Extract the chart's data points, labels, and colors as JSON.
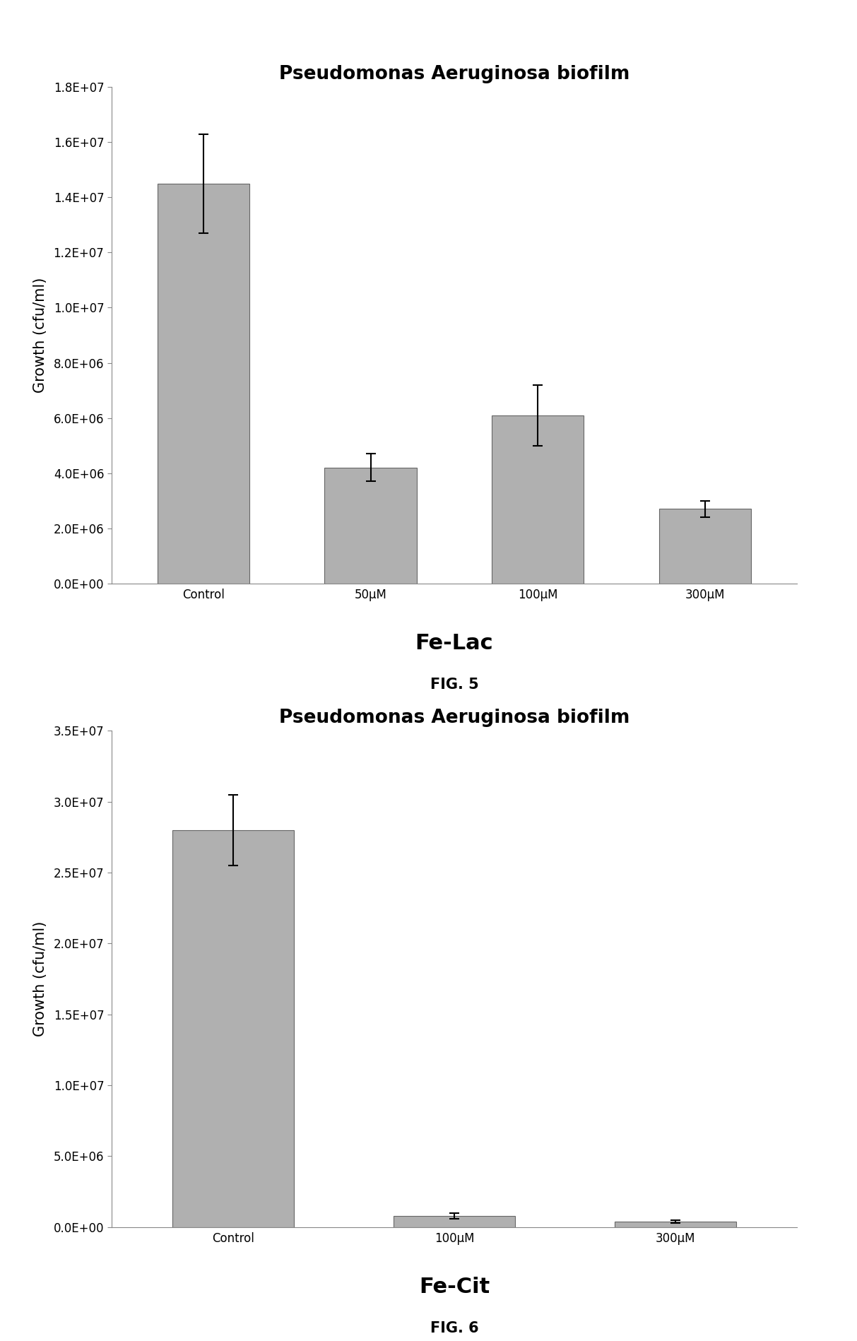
{
  "fig5": {
    "title": "Pseudomonas Aeruginosa biofilm",
    "categories": [
      "Control",
      "50μM",
      "100μM",
      "300μM"
    ],
    "values": [
      14500000.0,
      4200000.0,
      6100000.0,
      2700000.0
    ],
    "errors": [
      1800000.0,
      500000.0,
      1100000.0,
      300000.0
    ],
    "ylabel": "Growth (cfu/ml)",
    "xlabel": "Fe-Lac",
    "fig_label": "FIG. 5",
    "ylim": [
      0,
      18000000.0
    ],
    "yticks": [
      0,
      2000000.0,
      4000000.0,
      6000000.0,
      8000000.0,
      10000000.0,
      12000000.0,
      14000000.0,
      16000000.0,
      18000000.0
    ],
    "ytick_labels": [
      "0.0E+00",
      "2.0E+06",
      "4.0E+06",
      "6.0E+06",
      "8.0E+06",
      "1.0E+07",
      "1.2E+07",
      "1.4E+07",
      "1.6E+07",
      "1.8E+07"
    ],
    "bar_color": "#b0b0b0",
    "bar_edgecolor": "#666666"
  },
  "fig6": {
    "title": "Pseudomonas Aeruginosa biofilm",
    "categories": [
      "Control",
      "100μM",
      "300μM"
    ],
    "values": [
      28000000.0,
      800000.0,
      400000.0
    ],
    "errors": [
      2500000.0,
      200000.0,
      100000.0
    ],
    "ylabel": "Growth (cfu/ml)",
    "xlabel": "Fe-Cit",
    "fig_label": "FIG. 6",
    "ylim": [
      0,
      35000000.0
    ],
    "yticks": [
      0,
      5000000.0,
      10000000.0,
      15000000.0,
      20000000.0,
      25000000.0,
      30000000.0,
      35000000.0
    ],
    "ytick_labels": [
      "0.0E+00",
      "5.0E+06",
      "1.0E+07",
      "1.5E+07",
      "2.0E+07",
      "2.5E+07",
      "3.0E+07",
      "3.5E+07"
    ],
    "bar_color": "#b0b0b0",
    "bar_edgecolor": "#666666"
  },
  "background_color": "#ffffff",
  "title_fontsize": 19,
  "label_fontsize": 15,
  "tick_fontsize": 12,
  "xlabel_fontsize": 22,
  "figlabel_fontsize": 15
}
